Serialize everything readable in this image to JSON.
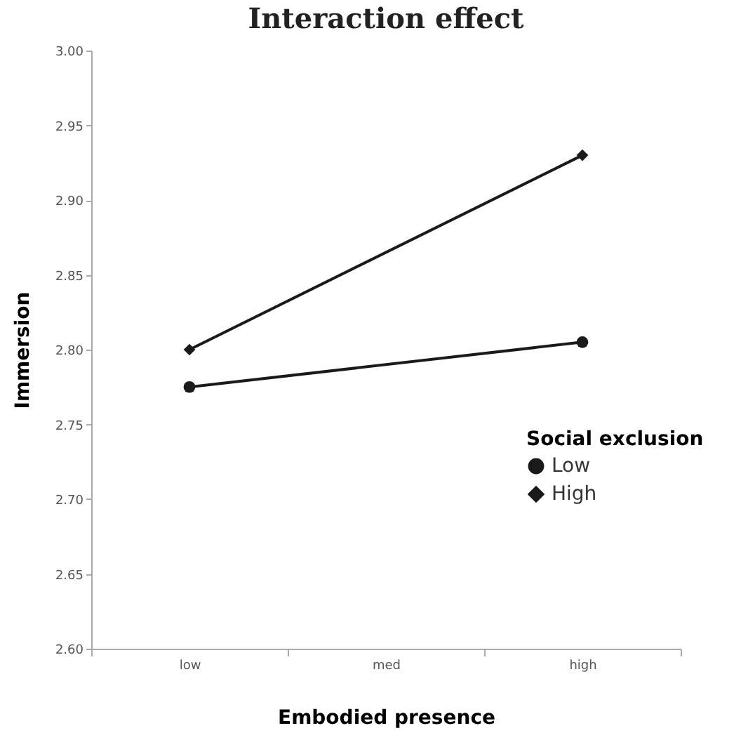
{
  "chart_data": {
    "type": "line",
    "title": "Interaction effect",
    "xlabel": "Embodied presence",
    "ylabel": "Immersion",
    "legend_title": "Social exclusion",
    "categories": [
      "low",
      "med",
      "high"
    ],
    "series": [
      {
        "name": "Low",
        "color": "#1a1a1a",
        "marker": "circle",
        "values": [
          2.775,
          null,
          2.805
        ]
      },
      {
        "name": "High",
        "color": "#1a1a1a",
        "marker": "diamond",
        "values": [
          2.8,
          null,
          2.93
        ]
      }
    ],
    "ylim": [
      2.6,
      3.0
    ],
    "yticks": [
      {
        "value": 2.6,
        "label": "2.60"
      },
      {
        "value": 2.65,
        "label": "2.65"
      },
      {
        "value": 2.7,
        "label": "2.70"
      },
      {
        "value": 2.75,
        "label": "2.75"
      },
      {
        "value": 2.8,
        "label": "2.80"
      },
      {
        "value": 2.85,
        "label": "2.85"
      },
      {
        "value": 2.9,
        "label": "2.90"
      },
      {
        "value": 2.95,
        "label": "2.95"
      },
      {
        "value": 3.0,
        "label": "3.00"
      }
    ],
    "grid": false,
    "legend": "right",
    "line_style": "solid"
  }
}
